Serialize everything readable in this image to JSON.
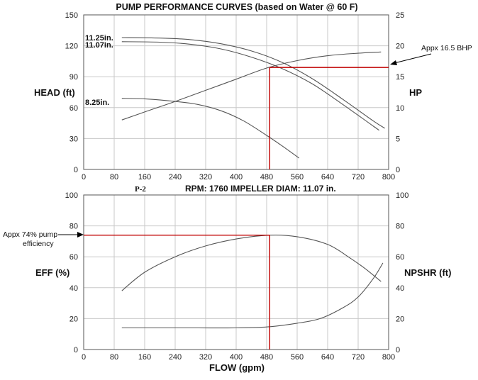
{
  "header": {
    "title": "PUMP PERFORMANCE CURVES (based on Water @ 60 F)",
    "model": "P-2",
    "subtitle": "RPM: 1760  IMPELLER DIAM: 11.07 in."
  },
  "colors": {
    "curve": "#555555",
    "grid": "#c8c8c8",
    "highlight": "#c00000",
    "text": "#111111"
  },
  "chart_data": [
    {
      "type": "line",
      "id": "head_hp",
      "xlabel": "",
      "ylabel": "HEAD (ft)",
      "y2label": "HP",
      "xlim": [
        0,
        800
      ],
      "ylim": [
        0,
        150
      ],
      "y2lim": [
        0,
        25
      ],
      "xticks": [
        0,
        80,
        160,
        240,
        320,
        400,
        480,
        560,
        640,
        720,
        800
      ],
      "yticks": [
        0,
        30,
        60,
        90,
        120,
        150
      ],
      "y2ticks": [
        0,
        5,
        10,
        15,
        20,
        25
      ],
      "grid": true,
      "series": [
        {
          "name": "11.25in.",
          "axis": "left",
          "points": [
            [
              100,
              128
            ],
            [
              200,
              127.5
            ],
            [
              280,
              126
            ],
            [
              360,
              122
            ],
            [
              440,
              115
            ],
            [
              520,
              104
            ],
            [
              600,
              88
            ],
            [
              680,
              68
            ],
            [
              760,
              47
            ],
            [
              790,
              40
            ]
          ]
        },
        {
          "name": "11.07in.",
          "axis": "left",
          "points": [
            [
              100,
              124
            ],
            [
              200,
              123.5
            ],
            [
              280,
              121.5
            ],
            [
              360,
              117
            ],
            [
              440,
              109
            ],
            [
              520,
              98
            ],
            [
              600,
              83
            ],
            [
              680,
              63
            ],
            [
              760,
              42
            ],
            [
              775,
              38
            ]
          ]
        },
        {
          "name": "8.25in.",
          "axis": "left",
          "points": [
            [
              100,
              69
            ],
            [
              160,
              68.5
            ],
            [
              240,
              66
            ],
            [
              300,
              63
            ],
            [
              360,
              57
            ],
            [
              420,
              47
            ],
            [
              480,
              33
            ],
            [
              520,
              23
            ],
            [
              565,
              11
            ]
          ]
        },
        {
          "name": "",
          "axis": "right",
          "points": [
            [
              100,
              8
            ],
            [
              160,
              9.3
            ],
            [
              240,
              11
            ],
            [
              320,
              12.8
            ],
            [
              400,
              14.6
            ],
            [
              480,
              16.4
            ],
            [
              560,
              17.6
            ],
            [
              640,
              18.4
            ],
            [
              720,
              18.8
            ],
            [
              780,
              19
            ]
          ]
        }
      ],
      "annotations": [
        {
          "text": "Appx 16.5 BHP",
          "x": 488,
          "y2": 16.5
        }
      ]
    },
    {
      "type": "line",
      "id": "eff_npshr",
      "xlabel": "FLOW (gpm)",
      "ylabel": "EFF (%)",
      "y2label": "NPSHR (ft)",
      "xlim": [
        0,
        800
      ],
      "ylim": [
        0,
        100
      ],
      "y2lim": [
        0,
        100
      ],
      "xticks": [
        0,
        80,
        160,
        240,
        320,
        400,
        480,
        560,
        640,
        720,
        800
      ],
      "yticks": [
        0,
        20,
        40,
        60,
        80,
        100
      ],
      "y2ticks": [
        0,
        20,
        40,
        60,
        80,
        100
      ],
      "grid": true,
      "series": [
        {
          "name": "",
          "axis": "left",
          "points": [
            [
              100,
              38
            ],
            [
              160,
              50
            ],
            [
              240,
              60
            ],
            [
              320,
              67
            ],
            [
              400,
              71.5
            ],
            [
              488,
              74
            ],
            [
              560,
              73
            ],
            [
              640,
              68
            ],
            [
              700,
              59
            ],
            [
              740,
              52
            ],
            [
              780,
              44
            ]
          ]
        },
        {
          "name": "",
          "axis": "right",
          "points": [
            [
              100,
              14
            ],
            [
              200,
              14
            ],
            [
              300,
              14
            ],
            [
              400,
              14
            ],
            [
              480,
              14.6
            ],
            [
              560,
              17
            ],
            [
              620,
              20
            ],
            [
              680,
              27
            ],
            [
              720,
              34
            ],
            [
              760,
              46
            ],
            [
              785,
              56
            ]
          ]
        }
      ],
      "annotations": [
        {
          "text": "Appx 74% pump",
          "x": 488,
          "y": 74
        },
        {
          "text": "efficiency"
        }
      ]
    }
  ]
}
